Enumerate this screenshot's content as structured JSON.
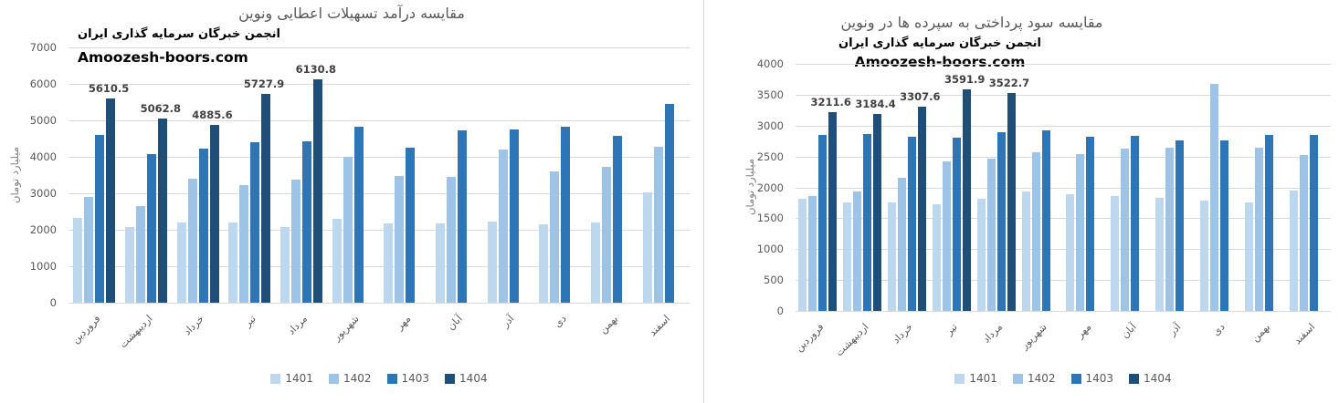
{
  "divider_color": "#d9d9d9",
  "watermark": "Amoozesh-boors.com",
  "months": [
    "فروردین",
    "اردیبهشت",
    "خرداد",
    "تیر",
    "مرداد",
    "شهریور",
    "مهر",
    "آبان",
    "آذر",
    "دی",
    "بهمن",
    "اسفند"
  ],
  "chart_data": [
    {
      "type": "bar",
      "title": "مقایسه درآمد تسهیلات اعطایی  ونوین",
      "subtitle": "انجمن خبرگان سرمایه گذاری ایران",
      "watermark": "Amoozesh-boors.com",
      "ylabel": "میلیارد تومان",
      "ylim": [
        0,
        7000
      ],
      "ytick_step": 1000,
      "grid": true,
      "legend_position": "bottom",
      "categories": [
        "فروردین",
        "اردیبهشت",
        "خرداد",
        "تیر",
        "مرداد",
        "شهریور",
        "مهر",
        "آبان",
        "آذر",
        "دی",
        "بهمن",
        "اسفند"
      ],
      "series": [
        {
          "name": "1401",
          "color": "#bdd7ee",
          "values": [
            2320,
            2080,
            2210,
            2190,
            2070,
            2300,
            2180,
            2180,
            2230,
            2160,
            2190,
            3020
          ]
        },
        {
          "name": "1402",
          "color": "#9dc3e6",
          "values": [
            2900,
            2640,
            3400,
            3230,
            3370,
            3990,
            3480,
            3450,
            4200,
            3600,
            3730,
            4280
          ]
        },
        {
          "name": "1403",
          "color": "#2e75b6",
          "values": [
            4600,
            4080,
            4230,
            4400,
            4430,
            4830,
            4260,
            4720,
            4750,
            4830,
            4580,
            5440
          ]
        },
        {
          "name": "1404",
          "color": "#1f4e79",
          "values": [
            5610.5,
            5062.8,
            4885.6,
            5727.9,
            6130.8,
            null,
            null,
            null,
            null,
            null,
            null,
            null
          ],
          "data_labels": true
        }
      ]
    },
    {
      "type": "bar",
      "title": "مقایسه سود پرداختی به سپرده ها در ونوین",
      "subtitle": "انجمن خبرگان سرمایه گذاری ایران",
      "watermark": "Amoozesh-boors.com",
      "ylabel": "میلیارد تومان",
      "ylim": [
        0,
        4000
      ],
      "ytick_step": 500,
      "grid": true,
      "legend_position": "bottom",
      "categories": [
        "فروردین",
        "اردیبهشت",
        "خرداد",
        "تیر",
        "مرداد",
        "شهریور",
        "مهر",
        "آبان",
        "آذر",
        "دی",
        "بهمن",
        "اسفند"
      ],
      "series": [
        {
          "name": "1401",
          "color": "#bdd7ee",
          "values": [
            1810,
            1760,
            1760,
            1730,
            1810,
            1930,
            1890,
            1865,
            1830,
            1780,
            1760,
            1955
          ]
        },
        {
          "name": "1402",
          "color": "#9dc3e6",
          "values": [
            1860,
            1940,
            2150,
            2420,
            2460,
            2570,
            2535,
            2630,
            2645,
            3670,
            2645,
            2530
          ]
        },
        {
          "name": "1403",
          "color": "#2e75b6",
          "values": [
            2855,
            2865,
            2825,
            2800,
            2890,
            2920,
            2820,
            2840,
            2755,
            2755,
            2845,
            2855
          ]
        },
        {
          "name": "1404",
          "color": "#1f4e79",
          "values": [
            3211.6,
            3184.4,
            3307.6,
            3591.9,
            3522.7,
            null,
            null,
            null,
            null,
            null,
            null,
            null
          ],
          "data_labels": true
        }
      ]
    }
  ]
}
